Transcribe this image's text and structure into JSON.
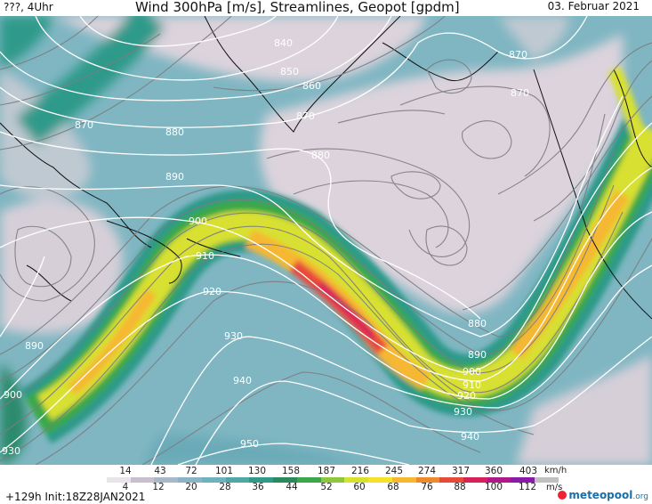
{
  "header": {
    "left": "???, 4Uhr",
    "title": "Wind 300hPa [m/s], Streamlines, Geopot [gpdm]",
    "date": "03. Februar 2021"
  },
  "map": {
    "contour_labels": [
      "840",
      "850",
      "860",
      "870",
      "870",
      "870",
      "870",
      "880",
      "880",
      "880",
      "890",
      "890",
      "890",
      "900",
      "900",
      "900",
      "910",
      "910",
      "920",
      "920",
      "930",
      "930",
      "930",
      "940",
      "940",
      "950"
    ]
  },
  "legend": {
    "kmh_labels": [
      "14",
      "43",
      "72",
      "101",
      "130",
      "158",
      "187",
      "216",
      "245",
      "274",
      "317",
      "360",
      "403"
    ],
    "kmh_unit": "km/h",
    "ms_labels": [
      "4",
      "12",
      "20",
      "28",
      "36",
      "44",
      "52",
      "60",
      "68",
      "76",
      "88",
      "100",
      "112"
    ],
    "ms_unit": "m/s",
    "colors": [
      "#e8e4ea",
      "#c9bfcc",
      "#a7b8c8",
      "#8ab3c6",
      "#6fb2bf",
      "#4fa8a6",
      "#2f9a8a",
      "#2a8a5c",
      "#3aa84a",
      "#8cc83a",
      "#d8e030",
      "#f6e22a",
      "#f6b830",
      "#ef8a2a",
      "#e84a3a",
      "#d8205a",
      "#b01a86",
      "#8a1aa8",
      "#c0c0c0"
    ]
  },
  "footer": {
    "run": "+129h  Init:18Z28JAN2021",
    "logo_main": "meteopool",
    "logo_tld": ".org"
  }
}
